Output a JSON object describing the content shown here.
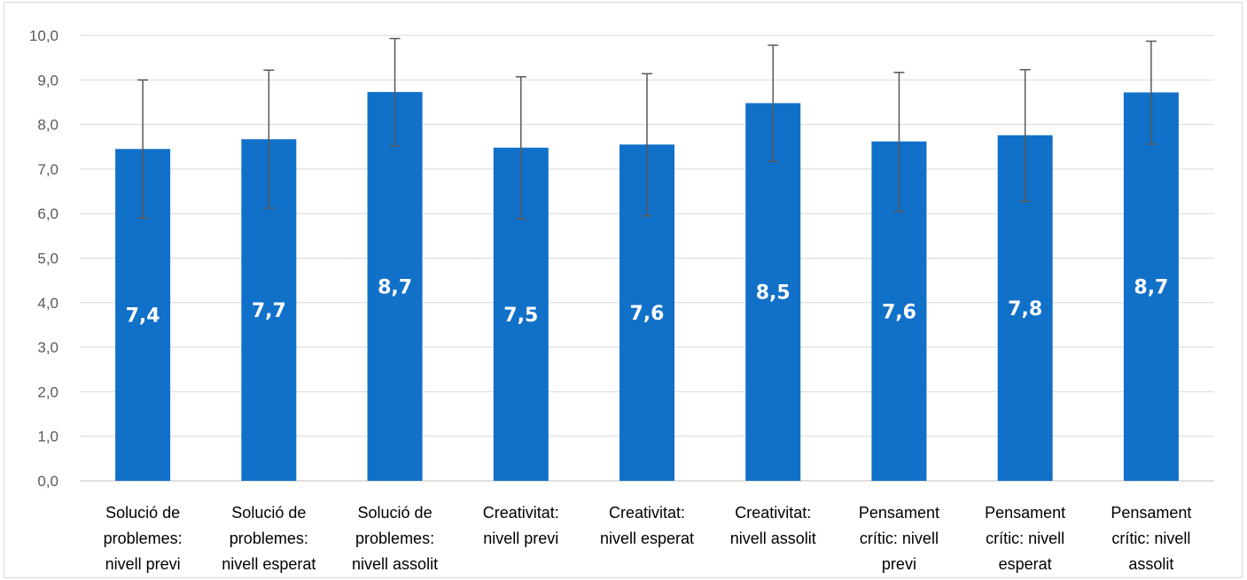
{
  "chart_data": {
    "type": "bar",
    "categories": [
      [
        "Solució de",
        "problemes:",
        "nivell previ"
      ],
      [
        "Solució de",
        "problemes:",
        "nivell esperat"
      ],
      [
        "Solució de",
        "problemes:",
        "nivell assolit"
      ],
      [
        "Creativitat:",
        "nivell previ"
      ],
      [
        "Creativitat:",
        "nivell esperat"
      ],
      [
        "Creativitat:",
        "nivell assolit"
      ],
      [
        "Pensament",
        "crític: nivell",
        "previ"
      ],
      [
        "Pensament",
        "crític: nivell",
        "esperat"
      ],
      [
        "Pensament",
        "crític: nivell",
        "assolit"
      ]
    ],
    "values": [
      7.45,
      7.67,
      8.73,
      7.48,
      7.55,
      8.48,
      7.62,
      7.76,
      8.72
    ],
    "value_labels": [
      "7,4",
      "7,7",
      "8,7",
      "7,5",
      "7,6",
      "8,5",
      "7,6",
      "7,8",
      "8,7"
    ],
    "error_bars": [
      [
        5.9,
        9.0
      ],
      [
        6.12,
        9.22
      ],
      [
        7.52,
        9.93
      ],
      [
        5.88,
        9.07
      ],
      [
        5.95,
        9.14
      ],
      [
        7.17,
        9.78
      ],
      [
        6.05,
        9.17
      ],
      [
        6.27,
        9.23
      ],
      [
        7.56,
        9.87
      ]
    ],
    "yticks": [
      "0,0",
      "1,0",
      "2,0",
      "3,0",
      "4,0",
      "5,0",
      "6,0",
      "7,0",
      "8,0",
      "9,0",
      "10,0"
    ],
    "ylim": [
      0,
      10
    ],
    "grid": true,
    "bar_color": "#1170c8",
    "error_color": "#595959",
    "grid_color": "#d9d9d9"
  }
}
